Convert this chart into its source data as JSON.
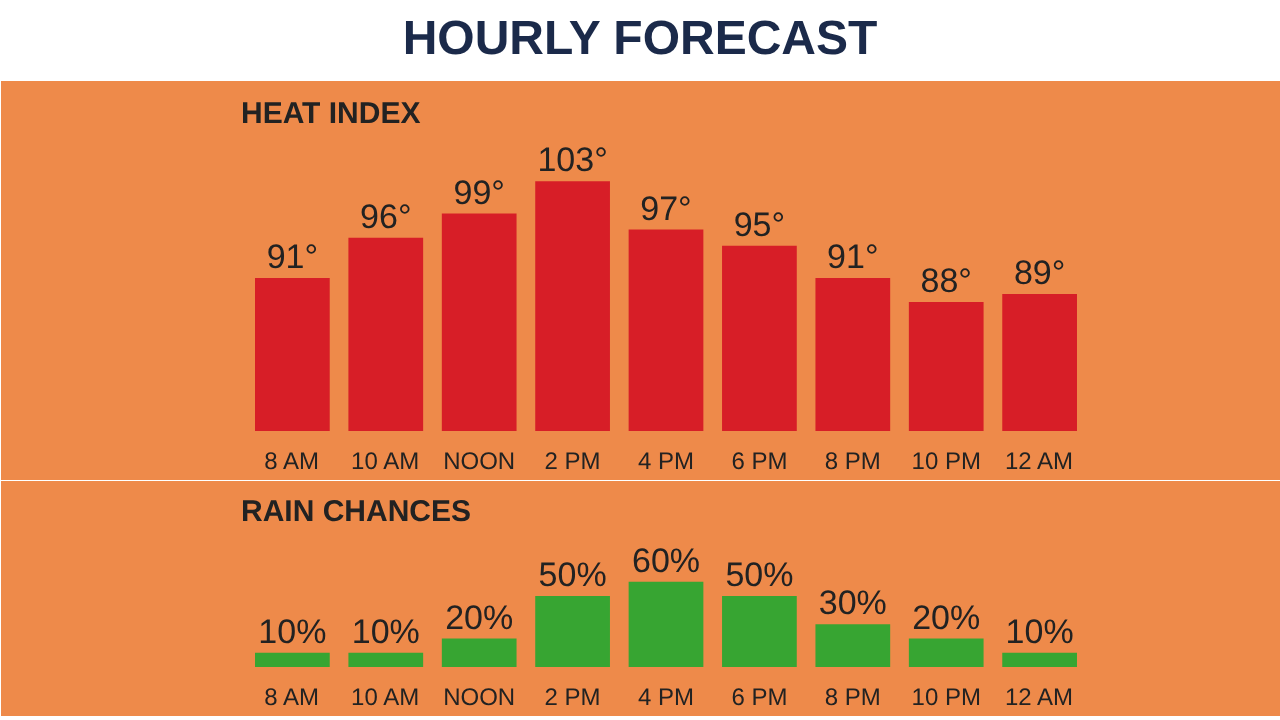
{
  "chart_data": [
    {
      "type": "bar",
      "title": "HOURLY FORECAST",
      "subtitle": "HEAT INDEX",
      "categories": [
        "8 AM",
        "10 AM",
        "NOON",
        "2 PM",
        "4 PM",
        "6 PM",
        "8 PM",
        "10 PM",
        "12 AM"
      ],
      "values": [
        91,
        96,
        99,
        103,
        97,
        95,
        91,
        88,
        89
      ],
      "value_labels": [
        "91°",
        "96°",
        "99°",
        "103°",
        "97°",
        "95°",
        "91°",
        "88°",
        "89°"
      ],
      "color": "#d71e27",
      "ylim": [
        72,
        108
      ],
      "tick_labels": "x",
      "grid": false
    },
    {
      "type": "bar",
      "title": "RAIN CHANCES",
      "categories": [
        "8 AM",
        "10 AM",
        "NOON",
        "2 PM",
        "4 PM",
        "6 PM",
        "8 PM",
        "10 PM",
        "12 AM"
      ],
      "values": [
        10,
        10,
        20,
        50,
        60,
        50,
        30,
        20,
        10
      ],
      "value_labels": [
        "10%",
        "10%",
        "20%",
        "50%",
        "60%",
        "50%",
        "30%",
        "20%",
        "10%"
      ],
      "color": "#37a532",
      "ylim": [
        0,
        90
      ],
      "tick_labels": "x",
      "grid": false
    }
  ]
}
